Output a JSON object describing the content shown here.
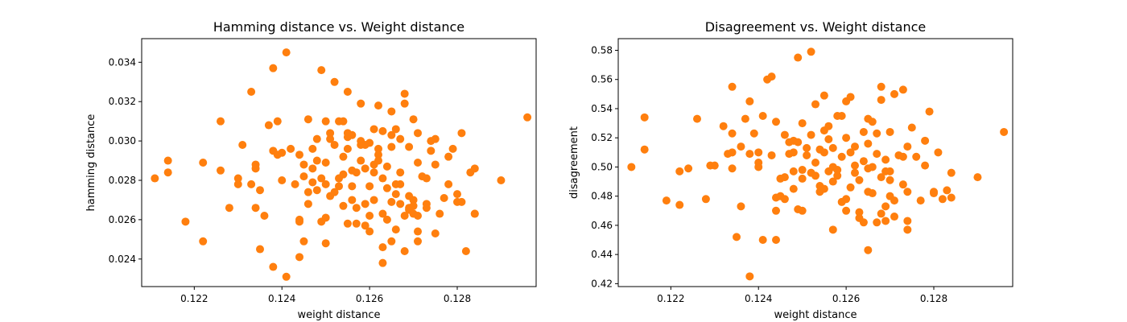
{
  "chart_data": [
    {
      "type": "scatter",
      "title": "Hamming distance vs. Weight distance",
      "xlabel": "weight distance",
      "ylabel": "hamming distance",
      "xlim": [
        0.1208,
        0.1298
      ],
      "ylim": [
        0.0226,
        0.0352
      ],
      "xticks": [
        0.122,
        0.124,
        0.126,
        0.128
      ],
      "xtick_labels": [
        "0.122",
        "0.124",
        "0.126",
        "0.128"
      ],
      "yticks": [
        0.024,
        0.026,
        0.028,
        0.03,
        0.032,
        0.034
      ],
      "ytick_labels": [
        "0.024",
        "0.026",
        "0.028",
        "0.030",
        "0.032",
        "0.034"
      ],
      "grid": false,
      "color": "#ff7f0e",
      "points": [
        [
          0.1211,
          0.0281
        ],
        [
          0.1214,
          0.029
        ],
        [
          0.1214,
          0.0284
        ],
        [
          0.1218,
          0.0259
        ],
        [
          0.1222,
          0.0289
        ],
        [
          0.1222,
          0.0249
        ],
        [
          0.1226,
          0.0285
        ],
        [
          0.1226,
          0.031
        ],
        [
          0.1228,
          0.0266
        ],
        [
          0.123,
          0.0278
        ],
        [
          0.123,
          0.0281
        ],
        [
          0.1231,
          0.0298
        ],
        [
          0.1233,
          0.0278
        ],
        [
          0.1233,
          0.0325
        ],
        [
          0.1234,
          0.0288
        ],
        [
          0.1234,
          0.0286
        ],
        [
          0.1234,
          0.0266
        ],
        [
          0.1235,
          0.0275
        ],
        [
          0.1235,
          0.0245
        ],
        [
          0.1236,
          0.0262
        ],
        [
          0.1237,
          0.0308
        ],
        [
          0.1238,
          0.0295
        ],
        [
          0.1238,
          0.0236
        ],
        [
          0.1238,
          0.0337
        ],
        [
          0.1239,
          0.031
        ],
        [
          0.1239,
          0.0293
        ],
        [
          0.124,
          0.028
        ],
        [
          0.124,
          0.0294
        ],
        [
          0.1241,
          0.0231
        ],
        [
          0.1241,
          0.0345
        ],
        [
          0.1242,
          0.0296
        ],
        [
          0.1243,
          0.0278
        ],
        [
          0.1244,
          0.0241
        ],
        [
          0.1244,
          0.0259
        ],
        [
          0.1244,
          0.026
        ],
        [
          0.1244,
          0.0293
        ],
        [
          0.1245,
          0.0282
        ],
        [
          0.1245,
          0.0288
        ],
        [
          0.1245,
          0.0249
        ],
        [
          0.1246,
          0.0268
        ],
        [
          0.1246,
          0.0274
        ],
        [
          0.1246,
          0.0311
        ],
        [
          0.1247,
          0.0286
        ],
        [
          0.1247,
          0.0279
        ],
        [
          0.1247,
          0.0296
        ],
        [
          0.1248,
          0.0275
        ],
        [
          0.1248,
          0.029
        ],
        [
          0.1248,
          0.0301
        ],
        [
          0.1249,
          0.0281
        ],
        [
          0.1249,
          0.0259
        ],
        [
          0.1249,
          0.0336
        ],
        [
          0.125,
          0.0261
        ],
        [
          0.125,
          0.0289
        ],
        [
          0.125,
          0.0278
        ],
        [
          0.125,
          0.0248
        ],
        [
          0.125,
          0.031
        ],
        [
          0.1251,
          0.0272
        ],
        [
          0.1251,
          0.0301
        ],
        [
          0.1251,
          0.0304
        ],
        [
          0.1252,
          0.033
        ],
        [
          0.1252,
          0.0298
        ],
        [
          0.1252,
          0.0274
        ],
        [
          0.1253,
          0.031
        ],
        [
          0.1253,
          0.0281
        ],
        [
          0.1253,
          0.0277
        ],
        [
          0.1254,
          0.0267
        ],
        [
          0.1254,
          0.0283
        ],
        [
          0.1254,
          0.031
        ],
        [
          0.1254,
          0.0292
        ],
        [
          0.1255,
          0.0302
        ],
        [
          0.1255,
          0.0325
        ],
        [
          0.1255,
          0.0258
        ],
        [
          0.1255,
          0.0296
        ],
        [
          0.1255,
          0.0304
        ],
        [
          0.1256,
          0.0277
        ],
        [
          0.1256,
          0.0285
        ],
        [
          0.1256,
          0.0303
        ],
        [
          0.1256,
          0.027
        ],
        [
          0.1257,
          0.0266
        ],
        [
          0.1257,
          0.0284
        ],
        [
          0.1257,
          0.0258
        ],
        [
          0.1258,
          0.0298
        ],
        [
          0.1258,
          0.029
        ],
        [
          0.1258,
          0.0319
        ],
        [
          0.1258,
          0.03
        ],
        [
          0.1259,
          0.0286
        ],
        [
          0.1259,
          0.0257
        ],
        [
          0.1259,
          0.0268
        ],
        [
          0.1259,
          0.0298
        ],
        [
          0.126,
          0.0299
        ],
        [
          0.126,
          0.0254
        ],
        [
          0.126,
          0.0262
        ],
        [
          0.126,
          0.0277
        ],
        [
          0.1261,
          0.0288
        ],
        [
          0.1261,
          0.0284
        ],
        [
          0.1261,
          0.0306
        ],
        [
          0.1261,
          0.027
        ],
        [
          0.1262,
          0.0318
        ],
        [
          0.1262,
          0.0296
        ],
        [
          0.1262,
          0.029
        ],
        [
          0.1262,
          0.0293
        ],
        [
          0.1263,
          0.0246
        ],
        [
          0.1263,
          0.0263
        ],
        [
          0.1263,
          0.0238
        ],
        [
          0.1263,
          0.0281
        ],
        [
          0.1263,
          0.0305
        ],
        [
          0.1264,
          0.0287
        ],
        [
          0.1264,
          0.026
        ],
        [
          0.1264,
          0.0276
        ],
        [
          0.1265,
          0.0297
        ],
        [
          0.1265,
          0.0269
        ],
        [
          0.1265,
          0.0303
        ],
        [
          0.1265,
          0.0249
        ],
        [
          0.1265,
          0.0315
        ],
        [
          0.1266,
          0.0306
        ],
        [
          0.1266,
          0.0278
        ],
        [
          0.1266,
          0.0273
        ],
        [
          0.1266,
          0.0255
        ],
        [
          0.1267,
          0.0284
        ],
        [
          0.1267,
          0.0278
        ],
        [
          0.1267,
          0.0268
        ],
        [
          0.1267,
          0.0301
        ],
        [
          0.1268,
          0.0244
        ],
        [
          0.1268,
          0.0324
        ],
        [
          0.1268,
          0.0319
        ],
        [
          0.1268,
          0.0262
        ],
        [
          0.1269,
          0.0297
        ],
        [
          0.1269,
          0.0272
        ],
        [
          0.1269,
          0.0266
        ],
        [
          0.1269,
          0.0265
        ],
        [
          0.127,
          0.0311
        ],
        [
          0.127,
          0.027
        ],
        [
          0.127,
          0.0263
        ],
        [
          0.127,
          0.0267
        ],
        [
          0.1271,
          0.0249
        ],
        [
          0.1271,
          0.0262
        ],
        [
          0.1271,
          0.0254
        ],
        [
          0.1271,
          0.0289
        ],
        [
          0.1271,
          0.0304
        ],
        [
          0.1272,
          0.0282
        ],
        [
          0.1273,
          0.0268
        ],
        [
          0.1273,
          0.0266
        ],
        [
          0.1273,
          0.0281
        ],
        [
          0.1274,
          0.03
        ],
        [
          0.1274,
          0.0295
        ],
        [
          0.1275,
          0.0301
        ],
        [
          0.1275,
          0.0288
        ],
        [
          0.1275,
          0.0253
        ],
        [
          0.1276,
          0.0263
        ],
        [
          0.1277,
          0.0271
        ],
        [
          0.1278,
          0.0292
        ],
        [
          0.1278,
          0.0278
        ],
        [
          0.1279,
          0.0296
        ],
        [
          0.128,
          0.0273
        ],
        [
          0.128,
          0.0269
        ],
        [
          0.1281,
          0.0304
        ],
        [
          0.1281,
          0.0269
        ],
        [
          0.1282,
          0.0244
        ],
        [
          0.1283,
          0.0284
        ],
        [
          0.1284,
          0.0286
        ],
        [
          0.1284,
          0.0263
        ],
        [
          0.1284,
          0.0263
        ],
        [
          0.129,
          0.028
        ],
        [
          0.1296,
          0.0312
        ]
      ]
    },
    {
      "type": "scatter",
      "title": "Disagreement vs. Weight distance",
      "xlabel": "weight distance",
      "ylabel": "disagreement",
      "xlim": [
        0.1208,
        0.1298
      ],
      "ylim": [
        0.418,
        0.588
      ],
      "xticks": [
        0.122,
        0.124,
        0.126,
        0.128
      ],
      "xtick_labels": [
        "0.122",
        "0.124",
        "0.126",
        "0.128"
      ],
      "yticks": [
        0.42,
        0.44,
        0.46,
        0.48,
        0.5,
        0.52,
        0.54,
        0.56,
        0.58
      ],
      "ytick_labels": [
        "0.42",
        "0.44",
        "0.46",
        "0.48",
        "0.50",
        "0.52",
        "0.54",
        "0.56",
        "0.58"
      ],
      "grid": false,
      "color": "#ff7f0e",
      "points": [
        [
          0.1211,
          0.5
        ],
        [
          0.1214,
          0.534
        ],
        [
          0.1214,
          0.512
        ],
        [
          0.1219,
          0.477
        ],
        [
          0.1222,
          0.474
        ],
        [
          0.1222,
          0.497
        ],
        [
          0.1224,
          0.499
        ],
        [
          0.1226,
          0.533
        ],
        [
          0.1228,
          0.478
        ],
        [
          0.1229,
          0.501
        ],
        [
          0.123,
          0.501
        ],
        [
          0.1232,
          0.528
        ],
        [
          0.1233,
          0.509
        ],
        [
          0.1234,
          0.555
        ],
        [
          0.1234,
          0.523
        ],
        [
          0.1234,
          0.51
        ],
        [
          0.1234,
          0.499
        ],
        [
          0.1235,
          0.452
        ],
        [
          0.1236,
          0.473
        ],
        [
          0.1236,
          0.514
        ],
        [
          0.1237,
          0.533
        ],
        [
          0.1238,
          0.509
        ],
        [
          0.1238,
          0.425
        ],
        [
          0.1238,
          0.545
        ],
        [
          0.1239,
          0.523
        ],
        [
          0.124,
          0.5
        ],
        [
          0.124,
          0.503
        ],
        [
          0.124,
          0.51
        ],
        [
          0.1241,
          0.535
        ],
        [
          0.1241,
          0.45
        ],
        [
          0.1242,
          0.56
        ],
        [
          0.1243,
          0.562
        ],
        [
          0.1243,
          0.508
        ],
        [
          0.1244,
          0.479
        ],
        [
          0.1244,
          0.47
        ],
        [
          0.1244,
          0.45
        ],
        [
          0.1244,
          0.531
        ],
        [
          0.1245,
          0.48
        ],
        [
          0.1245,
          0.492
        ],
        [
          0.1246,
          0.522
        ],
        [
          0.1246,
          0.478
        ],
        [
          0.1246,
          0.493
        ],
        [
          0.1247,
          0.517
        ],
        [
          0.1247,
          0.509
        ],
        [
          0.1248,
          0.485
        ],
        [
          0.1248,
          0.497
        ],
        [
          0.1248,
          0.518
        ],
        [
          0.1248,
          0.51
        ],
        [
          0.1249,
          0.517
        ],
        [
          0.1249,
          0.471
        ],
        [
          0.1249,
          0.575
        ],
        [
          0.125,
          0.53
        ],
        [
          0.125,
          0.47
        ],
        [
          0.125,
          0.498
        ],
        [
          0.125,
          0.492
        ],
        [
          0.1251,
          0.513
        ],
        [
          0.1251,
          0.508
        ],
        [
          0.1252,
          0.522
        ],
        [
          0.1252,
          0.579
        ],
        [
          0.1252,
          0.496
        ],
        [
          0.1253,
          0.543
        ],
        [
          0.1253,
          0.503
        ],
        [
          0.1253,
          0.494
        ],
        [
          0.1254,
          0.512
        ],
        [
          0.1254,
          0.487
        ],
        [
          0.1254,
          0.483
        ],
        [
          0.1255,
          0.525
        ],
        [
          0.1255,
          0.549
        ],
        [
          0.1255,
          0.485
        ],
        [
          0.1255,
          0.51
        ],
        [
          0.1256,
          0.497
        ],
        [
          0.1256,
          0.528
        ],
        [
          0.1256,
          0.519
        ],
        [
          0.1257,
          0.5
        ],
        [
          0.1257,
          0.49
        ],
        [
          0.1257,
          0.513
        ],
        [
          0.1257,
          0.457
        ],
        [
          0.1258,
          0.535
        ],
        [
          0.1258,
          0.498
        ],
        [
          0.1258,
          0.494
        ],
        [
          0.1259,
          0.507
        ],
        [
          0.1259,
          0.476
        ],
        [
          0.1259,
          0.535
        ],
        [
          0.126,
          0.545
        ],
        [
          0.126,
          0.478
        ],
        [
          0.126,
          0.47
        ],
        [
          0.126,
          0.52
        ],
        [
          0.1261,
          0.486
        ],
        [
          0.1261,
          0.548
        ],
        [
          0.1261,
          0.51
        ],
        [
          0.1262,
          0.496
        ],
        [
          0.1262,
          0.514
        ],
        [
          0.1262,
          0.501
        ],
        [
          0.1263,
          0.469
        ],
        [
          0.1263,
          0.491
        ],
        [
          0.1263,
          0.465
        ],
        [
          0.1264,
          0.462
        ],
        [
          0.1264,
          0.524
        ],
        [
          0.1264,
          0.504
        ],
        [
          0.1265,
          0.483
        ],
        [
          0.1265,
          0.499
        ],
        [
          0.1265,
          0.516
        ],
        [
          0.1265,
          0.443
        ],
        [
          0.1265,
          0.533
        ],
        [
          0.1266,
          0.5
        ],
        [
          0.1266,
          0.531
        ],
        [
          0.1266,
          0.482
        ],
        [
          0.1267,
          0.509
        ],
        [
          0.1267,
          0.462
        ],
        [
          0.1267,
          0.523
        ],
        [
          0.1268,
          0.546
        ],
        [
          0.1268,
          0.555
        ],
        [
          0.1268,
          0.493
        ],
        [
          0.1268,
          0.468
        ],
        [
          0.1269,
          0.497
        ],
        [
          0.1269,
          0.473
        ],
        [
          0.1269,
          0.463
        ],
        [
          0.1269,
          0.505
        ],
        [
          0.127,
          0.497
        ],
        [
          0.127,
          0.524
        ],
        [
          0.127,
          0.48
        ],
        [
          0.127,
          0.491
        ],
        [
          0.1271,
          0.55
        ],
        [
          0.1271,
          0.477
        ],
        [
          0.1271,
          0.466
        ],
        [
          0.1272,
          0.508
        ],
        [
          0.1273,
          0.507
        ],
        [
          0.1273,
          0.488
        ],
        [
          0.1273,
          0.553
        ],
        [
          0.1274,
          0.483
        ],
        [
          0.1274,
          0.514
        ],
        [
          0.1274,
          0.457
        ],
        [
          0.1274,
          0.463
        ],
        [
          0.1275,
          0.527
        ],
        [
          0.1276,
          0.507
        ],
        [
          0.1277,
          0.477
        ],
        [
          0.1278,
          0.518
        ],
        [
          0.1278,
          0.501
        ],
        [
          0.1279,
          0.538
        ],
        [
          0.128,
          0.483
        ],
        [
          0.128,
          0.482
        ],
        [
          0.1281,
          0.51
        ],
        [
          0.1282,
          0.478
        ],
        [
          0.1283,
          0.484
        ],
        [
          0.1284,
          0.496
        ],
        [
          0.1284,
          0.479
        ],
        [
          0.129,
          0.493
        ],
        [
          0.1296,
          0.524
        ]
      ]
    }
  ]
}
